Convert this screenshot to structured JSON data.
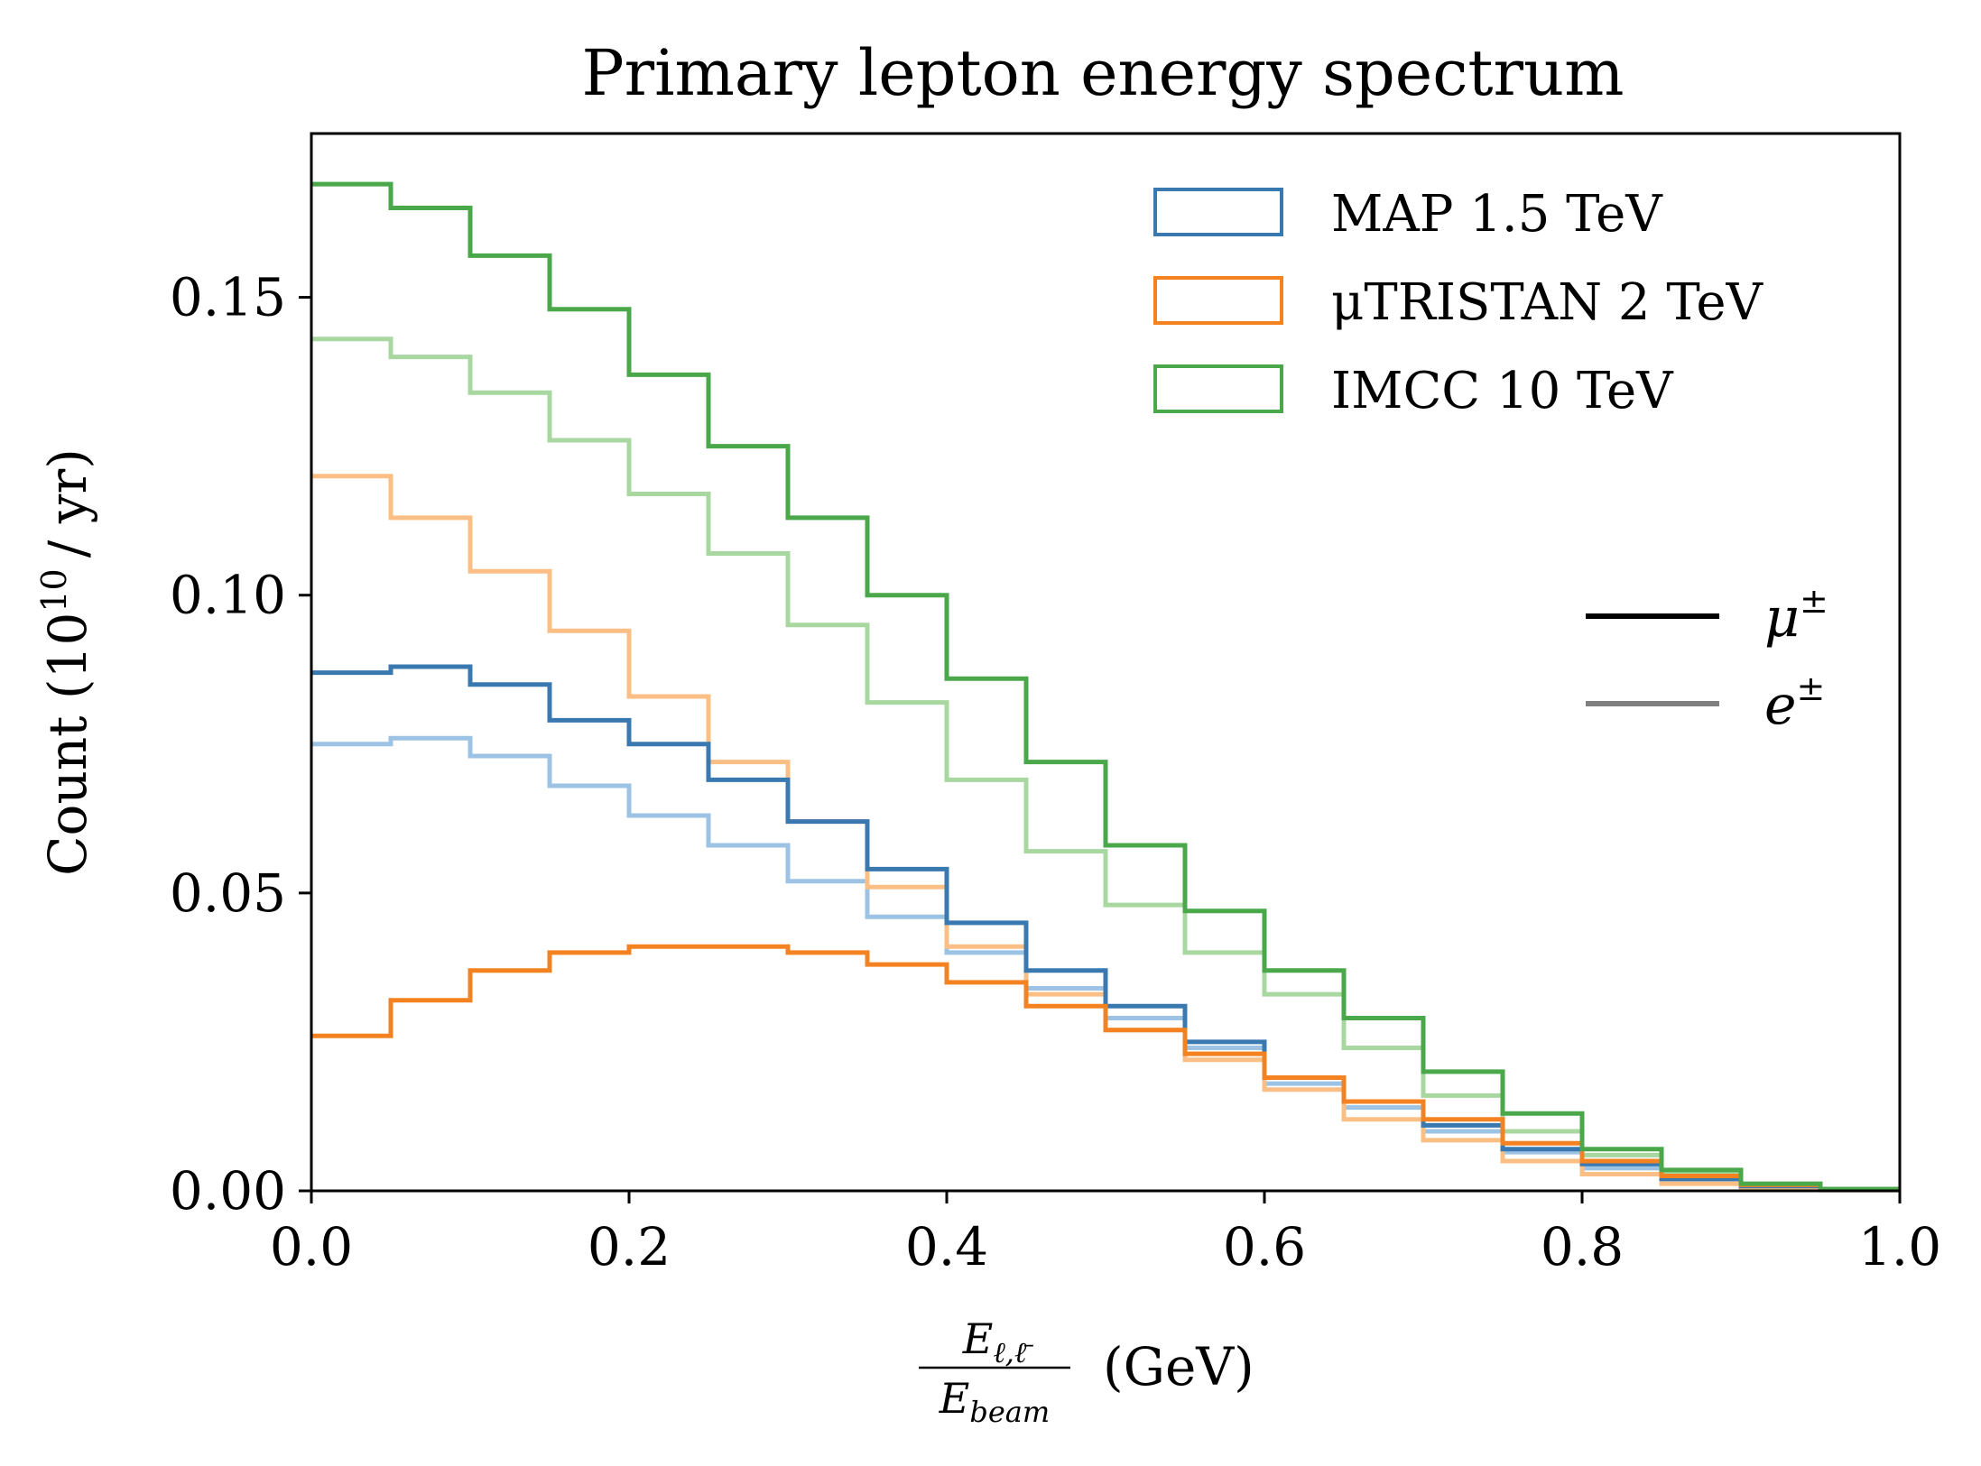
{
  "chart_data": {
    "type": "line",
    "drawstyle": "steps",
    "title": "Primary lepton energy spectrum",
    "ylabel": "Count (10^10 / yr)",
    "ylabel_parts": {
      "main": "Count (10",
      "sup": "10",
      "tail": "/ yr)"
    },
    "xlabel": "E_{ℓ,ℓ̄} / E_beam (GeV)",
    "xlabel_parts": {
      "num": "E",
      "num_sub": "ℓ,ℓ̄",
      "den": "E",
      "den_sub": "beam",
      "unit": "(GeV)"
    },
    "xlim": [
      0.0,
      1.0
    ],
    "ylim": [
      0.0,
      0.1775
    ],
    "xticks": [
      "0.0",
      "0.2",
      "0.4",
      "0.6",
      "0.8",
      "1.0"
    ],
    "yticks": [
      "0.00",
      "0.05",
      "0.10",
      "0.15"
    ],
    "grid": false,
    "legend_colliders": {
      "placement": "top-right",
      "entries": [
        {
          "label": "MAP 1.5 TeV",
          "color": "#3a78b0"
        },
        {
          "label": "μTRISTAN 2 TeV",
          "color": "#f58220"
        },
        {
          "label": "IMCC 10 TeV",
          "color": "#4aa84a"
        }
      ]
    },
    "legend_particles": {
      "placement": "right",
      "entries": [
        {
          "symbol": "μ",
          "sup": "±",
          "color": "#000000",
          "meaning": "solid dark shade"
        },
        {
          "symbol": "e",
          "sup": "±",
          "color": "#808080",
          "meaning": "light shade"
        }
      ]
    },
    "series": [
      {
        "name": "MAP 1.5 TeV",
        "particle": "μ±",
        "color": "#3a78b0",
        "x": [
          0.0,
          0.05,
          0.1,
          0.15,
          0.2,
          0.25,
          0.3,
          0.35,
          0.4,
          0.45,
          0.5,
          0.55,
          0.6,
          0.65,
          0.7,
          0.75,
          0.8,
          0.85,
          0.9,
          0.95,
          1.0
        ],
        "y": [
          0.087,
          0.088,
          0.085,
          0.079,
          0.075,
          0.069,
          0.062,
          0.054,
          0.045,
          0.037,
          0.031,
          0.025,
          0.019,
          0.015,
          0.011,
          0.007,
          0.0045,
          0.002,
          0.0008,
          0.0002,
          0.0
        ]
      },
      {
        "name": "MAP 1.5 TeV",
        "particle": "e±",
        "color": "#9cc3e4",
        "x": [
          0.0,
          0.05,
          0.1,
          0.15,
          0.2,
          0.25,
          0.3,
          0.35,
          0.4,
          0.45,
          0.5,
          0.55,
          0.6,
          0.65,
          0.7,
          0.75,
          0.8,
          0.85,
          0.9,
          0.95,
          1.0
        ],
        "y": [
          0.075,
          0.076,
          0.073,
          0.068,
          0.063,
          0.058,
          0.052,
          0.046,
          0.04,
          0.034,
          0.029,
          0.024,
          0.018,
          0.014,
          0.01,
          0.0065,
          0.0038,
          0.0018,
          0.0007,
          0.0002,
          0.0
        ]
      },
      {
        "name": "μTRISTAN 2 TeV",
        "particle": "μ±",
        "color": "#f58220",
        "x": [
          0.0,
          0.05,
          0.1,
          0.15,
          0.2,
          0.25,
          0.3,
          0.35,
          0.4,
          0.45,
          0.5,
          0.55,
          0.6,
          0.65,
          0.7,
          0.75,
          0.8,
          0.85,
          0.9,
          0.95,
          1.0
        ],
        "y": [
          0.026,
          0.032,
          0.037,
          0.04,
          0.041,
          0.041,
          0.04,
          0.038,
          0.035,
          0.031,
          0.027,
          0.023,
          0.019,
          0.015,
          0.012,
          0.008,
          0.005,
          0.0025,
          0.001,
          0.0003,
          0.0
        ]
      },
      {
        "name": "μTRISTAN 2 TeV",
        "particle": "e±",
        "color": "#fbbf85",
        "x": [
          0.0,
          0.05,
          0.1,
          0.15,
          0.2,
          0.25,
          0.3,
          0.35,
          0.4,
          0.45,
          0.5,
          0.55,
          0.6,
          0.65,
          0.7,
          0.75,
          0.8,
          0.85,
          0.9,
          0.95,
          1.0
        ],
        "y": [
          0.12,
          0.113,
          0.104,
          0.094,
          0.083,
          0.072,
          0.062,
          0.051,
          0.041,
          0.033,
          0.027,
          0.022,
          0.017,
          0.012,
          0.0085,
          0.005,
          0.0028,
          0.0012,
          0.0004,
          0.0001,
          0.0
        ]
      },
      {
        "name": "IMCC 10 TeV",
        "particle": "μ±",
        "color": "#4aa84a",
        "x": [
          0.0,
          0.05,
          0.1,
          0.15,
          0.2,
          0.25,
          0.3,
          0.35,
          0.4,
          0.45,
          0.5,
          0.55,
          0.6,
          0.65,
          0.7,
          0.75,
          0.8,
          0.85,
          0.9,
          0.95,
          1.0
        ],
        "y": [
          0.169,
          0.165,
          0.157,
          0.148,
          0.137,
          0.125,
          0.113,
          0.1,
          0.086,
          0.072,
          0.058,
          0.047,
          0.037,
          0.029,
          0.02,
          0.013,
          0.007,
          0.0035,
          0.0012,
          0.0003,
          0.0
        ]
      },
      {
        "name": "IMCC 10 TeV",
        "particle": "e±",
        "color": "#a8d8a0",
        "x": [
          0.0,
          0.05,
          0.1,
          0.15,
          0.2,
          0.25,
          0.3,
          0.35,
          0.4,
          0.45,
          0.5,
          0.55,
          0.6,
          0.65,
          0.7,
          0.75,
          0.8,
          0.85,
          0.9,
          0.95,
          1.0
        ],
        "y": [
          0.143,
          0.14,
          0.134,
          0.126,
          0.117,
          0.107,
          0.095,
          0.082,
          0.069,
          0.057,
          0.048,
          0.04,
          0.033,
          0.024,
          0.016,
          0.01,
          0.006,
          0.003,
          0.001,
          0.0003,
          0.0
        ]
      }
    ]
  }
}
